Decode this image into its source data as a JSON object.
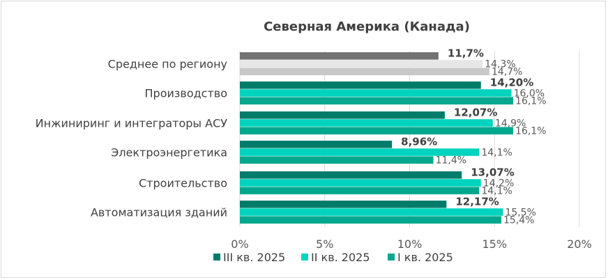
{
  "chart_data": {
    "type": "bar",
    "orientation": "horizontal",
    "title": "Северная Америка (Канада)",
    "xlabel": "",
    "ylabel": "",
    "xlim": [
      0,
      20
    ],
    "x_ticks": [
      "0%",
      "5%",
      "10%",
      "15%",
      "20%"
    ],
    "grid": true,
    "legend_position": "bottom",
    "categories": [
      "Среднее по региону",
      "Производство",
      "Инжиниринг и интеграторы АСУ",
      "Электроэнергетика",
      "Строительство",
      "Автоматизация зданий"
    ],
    "series": [
      {
        "name": "III кв. 2025",
        "values": [
          11.7,
          14.2,
          12.07,
          8.96,
          13.07,
          12.17
        ],
        "labels": [
          "11,7%",
          "14,20%",
          "12,07%",
          "8,96%",
          "13,07%",
          "12,17%"
        ]
      },
      {
        "name": "II кв. 2025",
        "values": [
          14.3,
          16.0,
          14.9,
          14.1,
          14.2,
          15.5
        ],
        "labels": [
          "14,3%",
          "16,0%",
          "14,9%",
          "14,1%",
          "14,2%",
          "15,5%"
        ]
      },
      {
        "name": "I кв. 2025",
        "values": [
          14.7,
          16.1,
          16.1,
          11.4,
          14.1,
          15.4
        ],
        "labels": [
          "14,7%",
          "16,1%",
          "16,1%",
          "11,4%",
          "14,1%",
          "15,4%"
        ]
      }
    ],
    "colors": {
      "series": [
        "#007c6b",
        "#00d4be",
        "#00a88e"
      ],
      "average_row": [
        "#737373",
        "#e6e6e6",
        "#c8c8c8"
      ],
      "grid": "#d9d9d9",
      "text": "#404040"
    }
  }
}
